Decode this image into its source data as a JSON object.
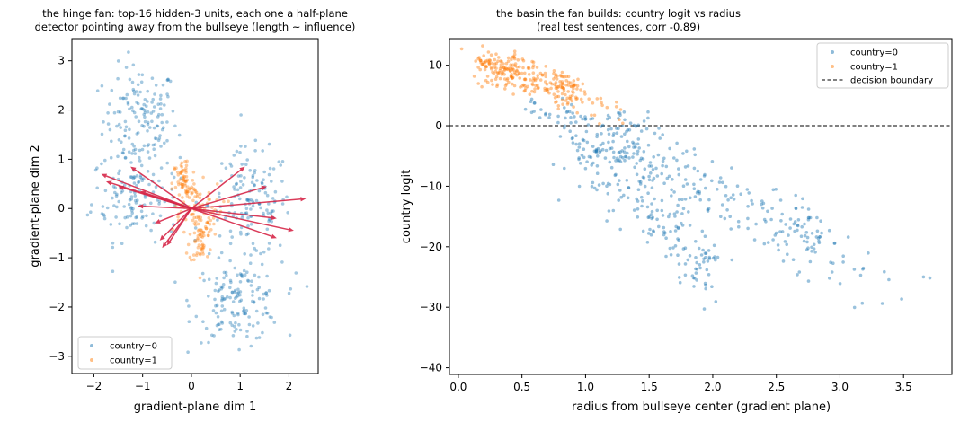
{
  "colors": {
    "class0": "#1f77b4",
    "class1": "#ff7f0e",
    "arrow": "#d62748",
    "boundary": "#000000"
  },
  "chart_data": [
    {
      "type": "scatter",
      "title": "the hinge fan: top-16 hidden-3 units, each one a half-plane\ndetector pointing away from the bullseye (length ~ influence)",
      "xlabel": "gradient-plane dim 1",
      "ylabel": "gradient-plane dim 2",
      "xlim": [
        -2.45,
        2.6
      ],
      "ylim": [
        -3.35,
        3.45
      ],
      "xticks": [
        -2,
        -1,
        0,
        1,
        2
      ],
      "yticks": [
        -3,
        -2,
        -1,
        0,
        1,
        2,
        3
      ],
      "legend_position": "lower-left",
      "series": [
        {
          "name": "country=0",
          "clusters": [
            {
              "cx": -1.05,
              "cy": 1.8,
              "sx": 0.38,
              "sy": 0.55,
              "n": 150
            },
            {
              "cx": -1.15,
              "cy": 0.25,
              "sx": 0.45,
              "sy": 0.45,
              "n": 130
            },
            {
              "cx": 1.2,
              "cy": 0.1,
              "sx": 0.42,
              "sy": 0.55,
              "n": 150
            },
            {
              "cx": 0.95,
              "cy": -1.9,
              "sx": 0.45,
              "sy": 0.4,
              "n": 150
            }
          ]
        },
        {
          "name": "country=1",
          "clusters": [
            {
              "cx": -0.15,
              "cy": 0.5,
              "sx": 0.12,
              "sy": 0.28,
              "n": 70
            },
            {
              "cx": 0.2,
              "cy": -0.55,
              "sx": 0.12,
              "sy": 0.3,
              "n": 70
            },
            {
              "cx": 0.05,
              "cy": 0.05,
              "sx": 0.3,
              "sy": 0.25,
              "n": 60
            }
          ]
        }
      ],
      "arrows": [
        [
          -1.85,
          0.7
        ],
        [
          -1.75,
          0.55
        ],
        [
          -1.5,
          0.45
        ],
        [
          -1.25,
          0.85
        ],
        [
          -1.05,
          0.35
        ],
        [
          -1.1,
          0.05
        ],
        [
          -0.75,
          -0.3
        ],
        [
          -0.65,
          -0.65
        ],
        [
          -0.5,
          -0.75
        ],
        [
          -0.6,
          -0.8
        ],
        [
          1.1,
          0.85
        ],
        [
          1.55,
          0.45
        ],
        [
          2.35,
          0.2
        ],
        [
          1.75,
          -0.2
        ],
        [
          2.1,
          -0.45
        ],
        [
          1.75,
          -0.6
        ]
      ]
    },
    {
      "type": "scatter",
      "title": "the basin the fan builds: country logit vs radius\n(real test sentences, corr -0.89)",
      "xlabel": "radius from bullseye center (gradient plane)",
      "ylabel": "country logit",
      "xlim": [
        -0.07,
        3.88
      ],
      "ylim": [
        -41.1,
        14.4
      ],
      "xticks": [
        0.0,
        0.5,
        1.0,
        1.5,
        2.0,
        2.5,
        3.0,
        3.5
      ],
      "yticks": [
        10,
        0,
        -10,
        -20,
        -30,
        -40
      ],
      "legend_position": "top-right",
      "hline": 0,
      "series": [
        {
          "name": "country=0",
          "bands": [
            {
              "x0": 0.8,
              "x1": 2.85,
              "y0": 0,
              "y1": -19,
              "spread": 3.2,
              "n": 240
            },
            {
              "x0": 0.95,
              "x1": 2.0,
              "y0": -3,
              "y1": -24,
              "spread": 3.0,
              "n": 180
            },
            {
              "x0": 0.55,
              "x1": 1.6,
              "y0": 3,
              "y1": -2,
              "spread": 1.3,
              "n": 50
            },
            {
              "x0": 2.5,
              "x1": 3.7,
              "y0": -18,
              "y1": -28,
              "spread": 3.0,
              "n": 45
            }
          ]
        },
        {
          "name": "country=1",
          "bands": [
            {
              "x0": 0.15,
              "x1": 0.95,
              "y0": 10.5,
              "y1": 5.5,
              "spread": 1.4,
              "n": 260
            },
            {
              "x0": 0.6,
              "x1": 1.3,
              "y0": 5.5,
              "y1": 2.5,
              "spread": 1.2,
              "n": 30
            }
          ]
        }
      ]
    }
  ],
  "legend": {
    "left": [
      "country=0",
      "country=1"
    ],
    "right": [
      "country=0",
      "country=1",
      "decision boundary"
    ]
  }
}
